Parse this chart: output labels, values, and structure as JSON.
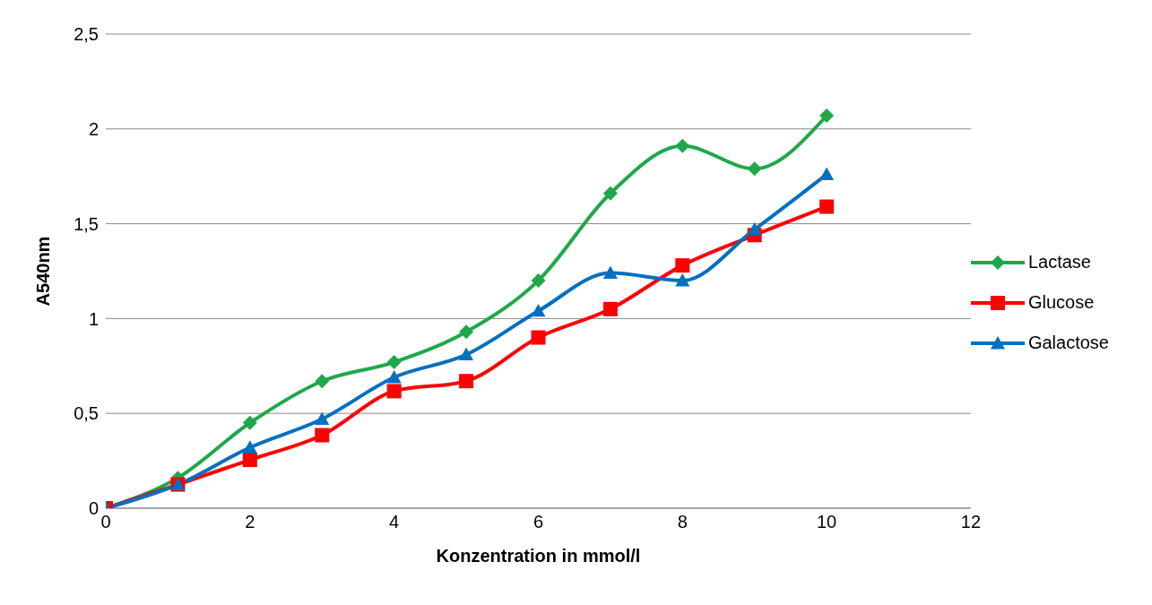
{
  "chart_data": {
    "type": "line",
    "xlabel": "Konzentration in mmol/l",
    "ylabel": "A540nm",
    "x": [
      0,
      1,
      2,
      3,
      4,
      5,
      6,
      7,
      8,
      9,
      10
    ],
    "series": [
      {
        "name": "Lactase",
        "color": "#1fa84a",
        "marker": "diamond",
        "values": [
          0,
          0.16,
          0.45,
          0.67,
          0.77,
          0.93,
          1.2,
          1.66,
          1.91,
          1.79,
          2.07
        ]
      },
      {
        "name": "Glucose",
        "color": "#ff0000",
        "marker": "square",
        "values": [
          0,
          0.125,
          0.255,
          0.385,
          0.617,
          0.67,
          0.9,
          1.05,
          1.28,
          1.44,
          1.59
        ]
      },
      {
        "name": "Galactose",
        "color": "#0070c0",
        "marker": "triangle",
        "values": [
          0,
          0.125,
          0.32,
          0.47,
          0.69,
          0.81,
          1.04,
          1.24,
          1.2,
          1.47,
          1.76
        ]
      }
    ],
    "xlim": [
      0,
      12
    ],
    "xticks": [
      0,
      2,
      4,
      6,
      8,
      10,
      12
    ],
    "ylim": [
      0,
      2.5
    ],
    "yticks": [
      0,
      {
        "value": 0.5,
        "label": "0,5"
      },
      1,
      {
        "value": 1.5,
        "label": "1,5"
      },
      2,
      {
        "value": 2.5,
        "label": "2,5"
      }
    ],
    "grid": "y",
    "legend": "right",
    "line_style": "solid"
  }
}
